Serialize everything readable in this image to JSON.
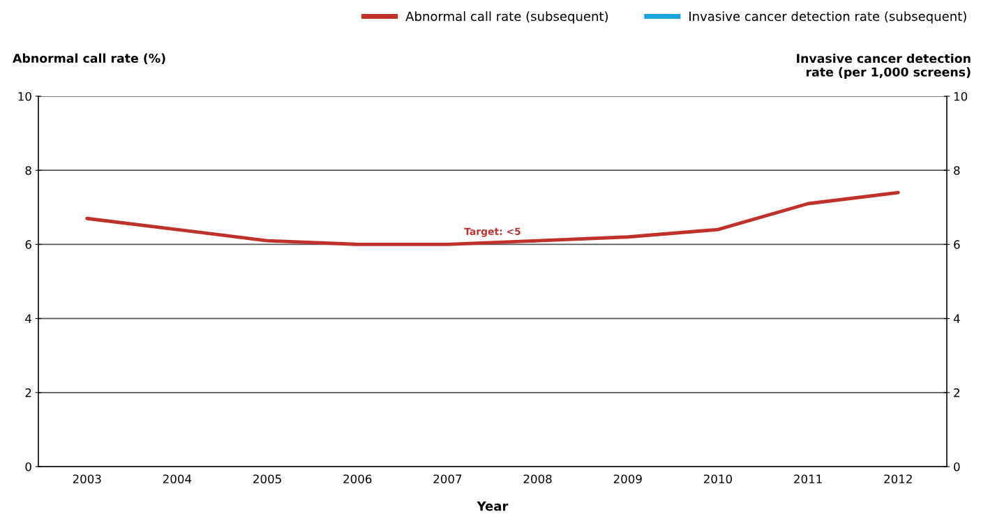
{
  "chart_data": {
    "type": "line",
    "xlabel": "Year",
    "ylabel": "Abnormal call rate (%)",
    "y2label": "Invasive cancer detection\nrate (per 1,000 screens)",
    "categories": [
      "2003",
      "2004",
      "2005",
      "2006",
      "2007",
      "2008",
      "2009",
      "2010",
      "2011",
      "2012"
    ],
    "series": [
      {
        "name": "Abnormal call rate (subsequent)",
        "color": "#c0312b",
        "values": [
          6.7,
          6.4,
          6.1,
          6.0,
          6.0,
          6.1,
          6.2,
          6.4,
          7.1,
          7.4
        ]
      },
      {
        "name": "Invasive cancer detection rate (subsequent)",
        "color": "#1aa3dc",
        "values": [
          null,
          null,
          null,
          null,
          null,
          null,
          null,
          null,
          null,
          null
        ]
      }
    ],
    "ylim": [
      0,
      10
    ],
    "yticks": [
      0,
      2,
      4,
      6,
      8,
      10
    ],
    "y2lim": [
      0,
      10
    ],
    "y2ticks": [
      0,
      2,
      4,
      6,
      8,
      10
    ],
    "annotations": [
      "Target: <5"
    ],
    "grid": "y",
    "legend": "top right",
    "marker": "none",
    "line_style": "solid"
  }
}
